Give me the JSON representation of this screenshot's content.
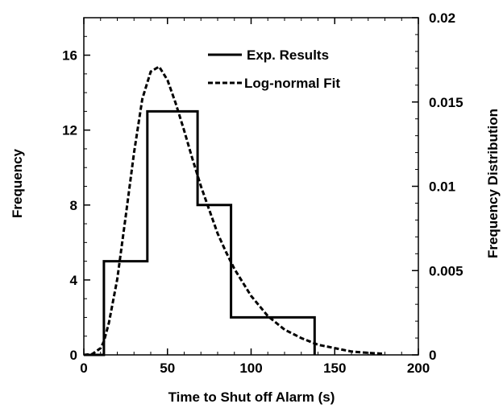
{
  "chart_data": {
    "type": "line",
    "xlabel": "Time to Shut off Alarm (s)",
    "ylabel": "Frequency",
    "y2label": "Frequency Distribution",
    "xlim": [
      0,
      200
    ],
    "ylim": [
      0,
      18
    ],
    "y2lim": [
      0,
      0.02
    ],
    "x_ticks": [
      "0",
      "50",
      "100",
      "150",
      "200"
    ],
    "y_ticks": [
      "0",
      "4",
      "8",
      "12",
      "16"
    ],
    "y2_ticks": [
      "0",
      "0.005",
      "0.01",
      "0.015",
      "0.02"
    ],
    "grid": false,
    "legend_position": "top-right",
    "series": [
      {
        "name": "Exp. Results",
        "style": "solid-step",
        "axis": "left",
        "x": [
          0,
          12,
          12,
          38,
          38,
          68,
          68,
          88,
          88,
          138,
          138
        ],
        "y": [
          0,
          0,
          5,
          5,
          13,
          13,
          8,
          8,
          2,
          2,
          0
        ]
      },
      {
        "name": "Log-normal Fit",
        "style": "dashed",
        "axis": "right",
        "x": [
          0,
          5,
          10,
          12,
          15,
          20,
          25,
          30,
          35,
          40,
          45,
          50,
          55,
          60,
          65,
          70,
          75,
          80,
          85,
          90,
          100,
          110,
          120,
          130,
          140,
          150,
          160,
          170,
          180
        ],
        "y": [
          0,
          5e-05,
          0.0004,
          0.0008,
          0.0019,
          0.0045,
          0.0082,
          0.012,
          0.0152,
          0.0168,
          0.0171,
          0.0163,
          0.0149,
          0.0133,
          0.0116,
          0.01,
          0.0086,
          0.0072,
          0.0061,
          0.0051,
          0.0035,
          0.0023,
          0.0015,
          0.001,
          0.0006,
          0.0004,
          0.0002,
          0.00012,
          6e-05
        ]
      }
    ]
  }
}
